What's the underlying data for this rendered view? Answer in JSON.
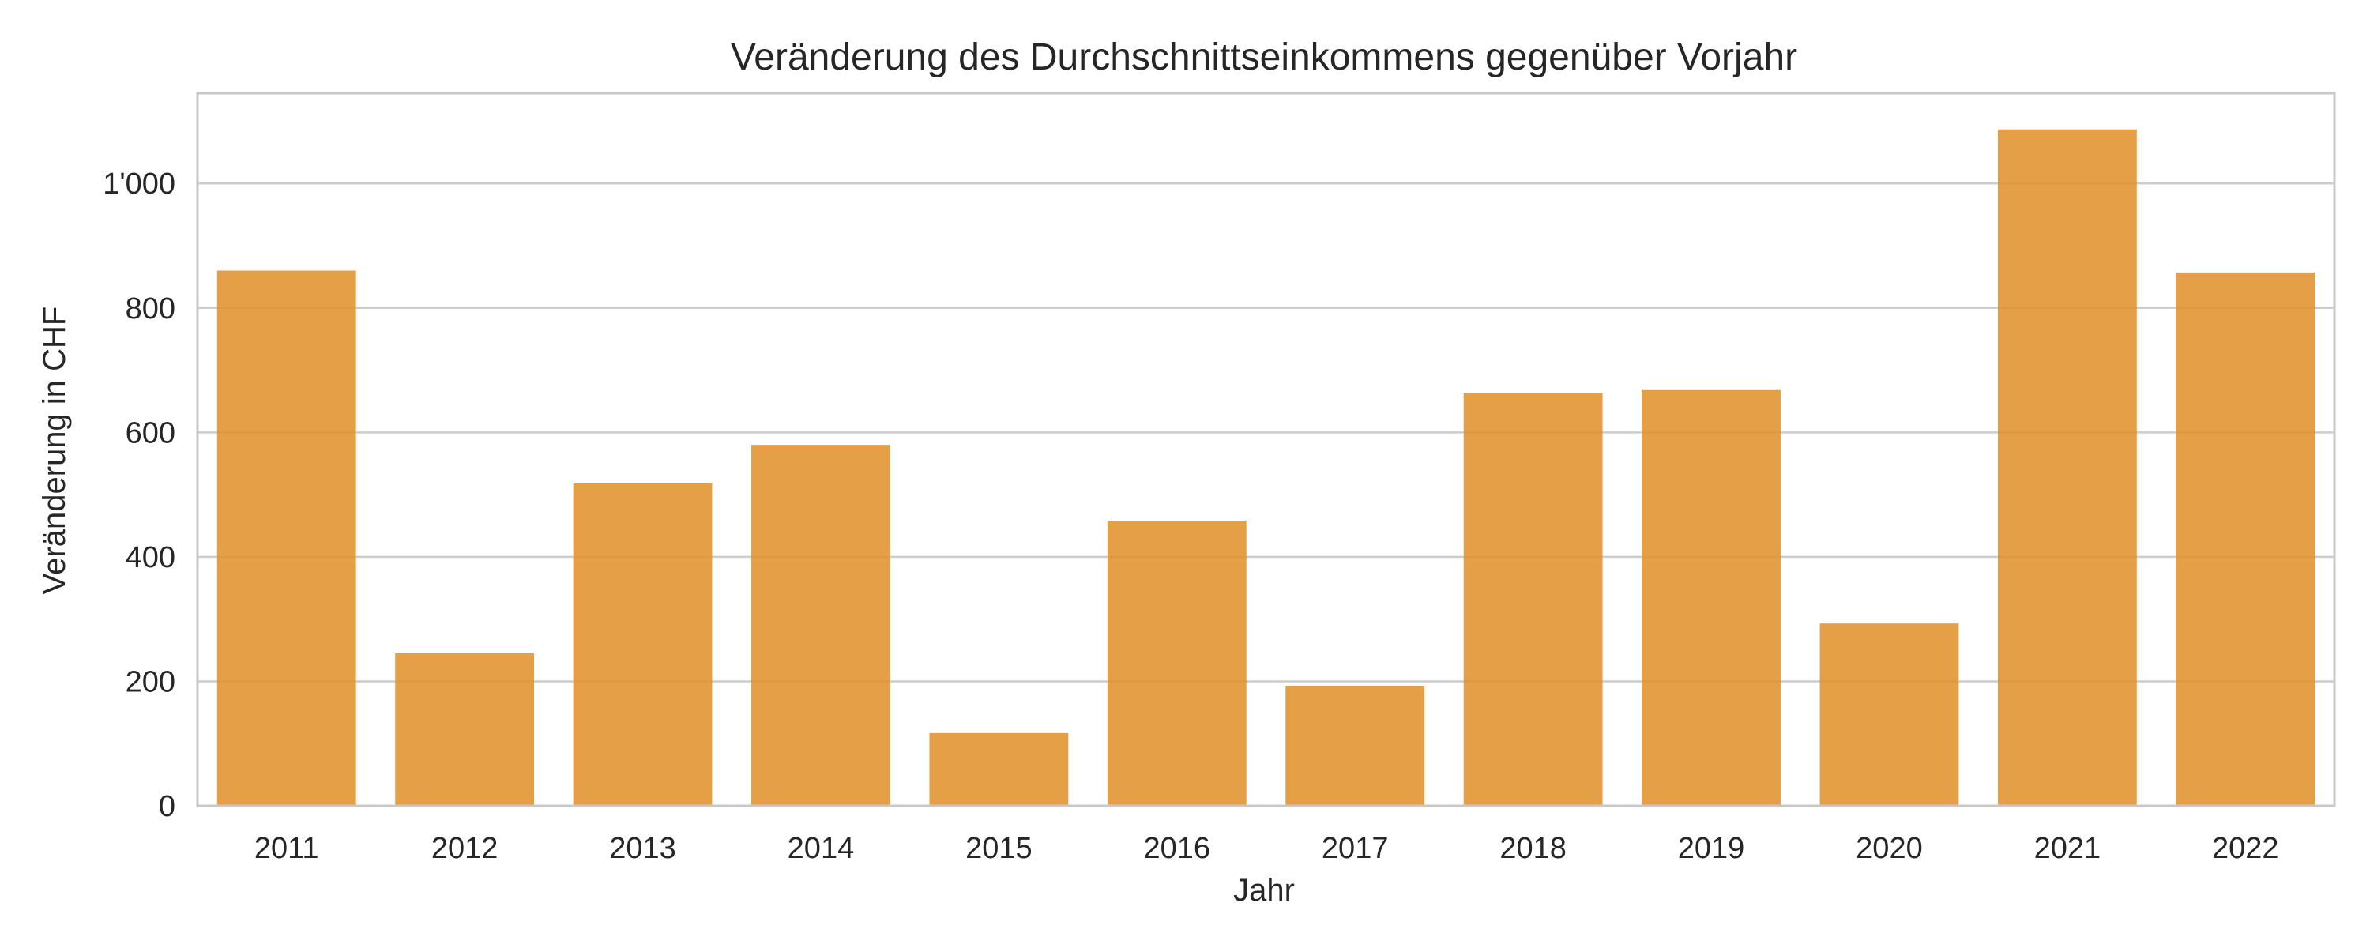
{
  "chart_data": {
    "type": "bar",
    "title": "Veränderung des Durchschnittseinkommens gegenüber Vorjahr",
    "xlabel": "Jahr",
    "ylabel": "Veränderung in CHF",
    "categories": [
      "2011",
      "2012",
      "2013",
      "2014",
      "2015",
      "2016",
      "2017",
      "2018",
      "2019",
      "2020",
      "2021",
      "2022"
    ],
    "values": [
      860,
      245,
      518,
      580,
      117,
      458,
      193,
      663,
      668,
      293,
      1087,
      857
    ],
    "ylim": [
      0,
      1145
    ],
    "yticks": [
      0,
      200,
      400,
      600,
      800,
      1000
    ],
    "ytick_labels": [
      "0",
      "200",
      "400",
      "600",
      "800",
      "1'000"
    ],
    "grid": "horizontal",
    "bar_color": "#E1922D",
    "zero_line": "dashed"
  }
}
